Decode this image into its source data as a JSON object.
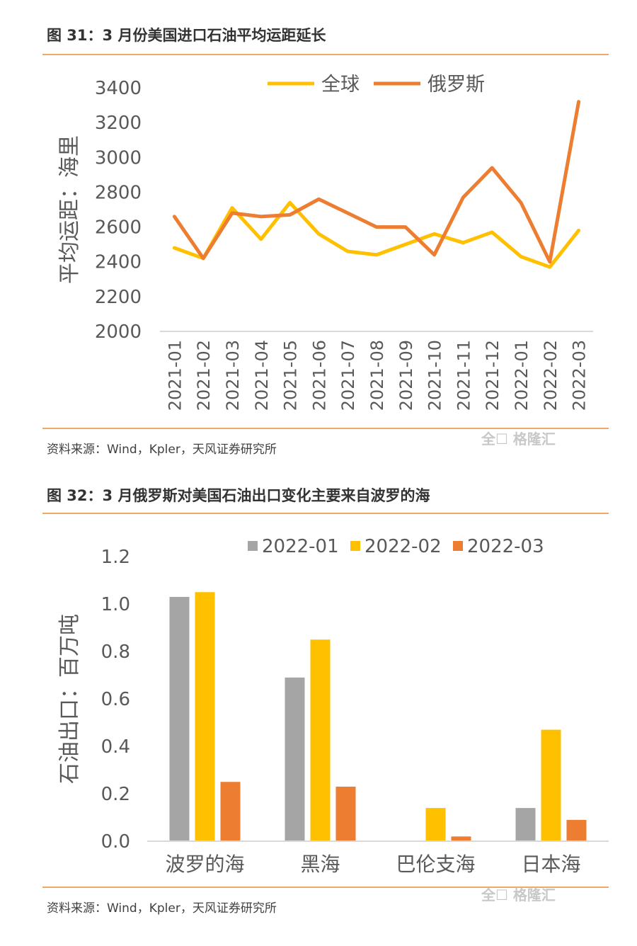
{
  "figure1": {
    "title": "图 31：3 月份美国进口石油平均运距延长",
    "source": "资料来源：Wind，Kpler，天风证券研究所",
    "watermark": "全☐ 格隆汇",
    "chart_data": {
      "type": "line",
      "x": [
        "2021-01",
        "2021-02",
        "2021-03",
        "2021-04",
        "2021-05",
        "2021-06",
        "2021-07",
        "2021-08",
        "2021-09",
        "2021-10",
        "2021-11",
        "2021-12",
        "2022-01",
        "2022-02",
        "2022-03"
      ],
      "series": [
        {
          "name": "全球",
          "color": "#ffc000",
          "values": [
            2480,
            2420,
            2710,
            2530,
            2740,
            2560,
            2460,
            2440,
            2500,
            2560,
            2510,
            2570,
            2430,
            2370,
            2580
          ]
        },
        {
          "name": "俄罗斯",
          "color": "#ed7d31",
          "values": [
            2660,
            2420,
            2680,
            2660,
            2670,
            2760,
            2680,
            2600,
            2600,
            2440,
            2770,
            2940,
            2740,
            2400,
            3320
          ]
        }
      ],
      "xlabel": "",
      "ylabel": "平均运距：海里",
      "ylim": [
        2000,
        3400
      ],
      "yticks": [
        2000,
        2200,
        2400,
        2600,
        2800,
        3000,
        3200,
        3400
      ],
      "grid": false,
      "legend": "top"
    }
  },
  "figure2": {
    "title": "图 32：3 月俄罗斯对美国石油出口变化主要来自波罗的海",
    "source": "资料来源：Wind，Kpler，天风证券研究所",
    "watermark": "全☐ 格隆汇",
    "chart_data": {
      "type": "bar",
      "categories": [
        "波罗的海",
        "黑海",
        "巴伦支海",
        "日本海"
      ],
      "series": [
        {
          "name": "2022-01",
          "color": "#a5a5a5",
          "values": [
            1.03,
            0.69,
            0.0,
            0.14
          ]
        },
        {
          "name": "2022-02",
          "color": "#ffc000",
          "values": [
            1.05,
            0.85,
            0.14,
            0.47
          ]
        },
        {
          "name": "2022-03",
          "color": "#ed7d31",
          "values": [
            0.25,
            0.23,
            0.02,
            0.09
          ]
        }
      ],
      "xlabel": "",
      "ylabel": "石油出口：百万吨",
      "ylim": [
        0,
        1.2
      ],
      "yticks": [
        "0.0",
        "0.2",
        "0.4",
        "0.6",
        "0.8",
        "1.0",
        "1.2"
      ],
      "grid": false,
      "legend": "top"
    }
  }
}
